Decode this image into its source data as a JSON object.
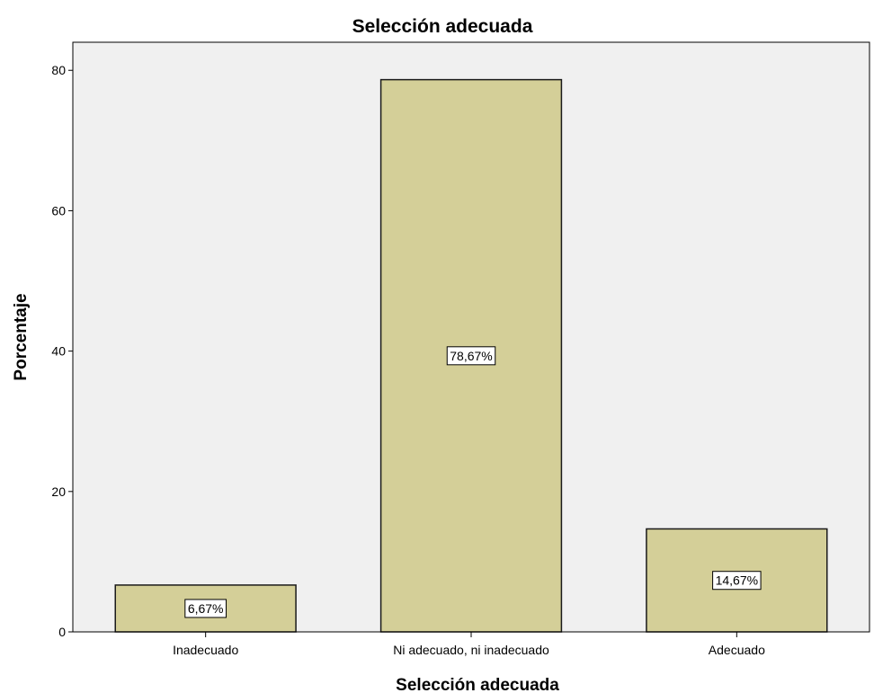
{
  "chart_data": {
    "type": "bar",
    "title": "Selección adecuada",
    "xlabel": "Selección adecuada",
    "ylabel": "Porcentaje",
    "categories": [
      "Inadecuado",
      "Ni adecuado, ni inadecuado",
      "Adecuado"
    ],
    "values": [
      6.67,
      78.67,
      14.67
    ],
    "data_labels": [
      "6,67%",
      "78,67%",
      "14,67%"
    ],
    "ylim": [
      0,
      84
    ],
    "yticks": [
      0,
      20,
      40,
      60,
      80
    ],
    "grid": false,
    "legend": "none",
    "colors": {
      "plot_background": "#f0f0f0",
      "bar_fill": "#d4cf98",
      "bar_stroke": "#1a1a1a"
    }
  }
}
